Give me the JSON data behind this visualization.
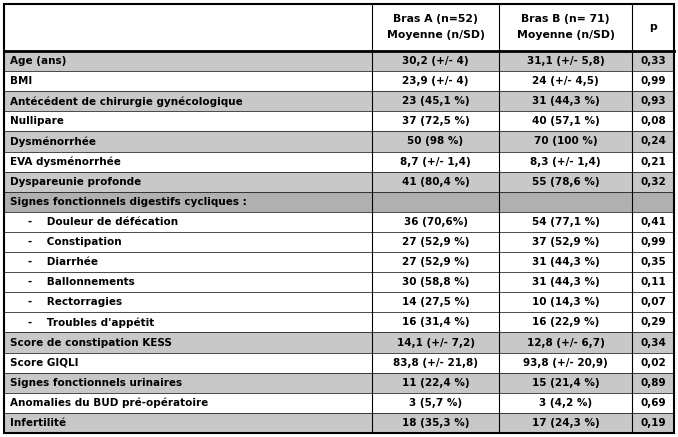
{
  "rows": [
    {
      "label": "Age (ans)",
      "bras_a": "30,2 (+/- 4)",
      "bras_b": "31,1 (+/- 5,8)",
      "p": "0,33",
      "bg": "light",
      "bold": true,
      "indent": 0
    },
    {
      "label": "BMI",
      "bras_a": "23,9 (+/- 4)",
      "bras_b": "24 (+/- 4,5)",
      "p": "0,99",
      "bg": "white",
      "bold": true,
      "indent": 0
    },
    {
      "label": "Antécédent de chirurgie gynécologique",
      "bras_a": "23 (45,1 %)",
      "bras_b": "31 (44,3 %)",
      "p": "0,93",
      "bg": "light",
      "bold": true,
      "indent": 0
    },
    {
      "label": "Nullipare",
      "bras_a": "37 (72,5 %)",
      "bras_b": "40 (57,1 %)",
      "p": "0,08",
      "bg": "white",
      "bold": true,
      "indent": 0
    },
    {
      "label": "Dysménorrhée",
      "bras_a": "50 (98 %)",
      "bras_b": "70 (100 %)",
      "p": "0,24",
      "bg": "light",
      "bold": true,
      "indent": 0
    },
    {
      "label": "EVA dysménorrhée",
      "bras_a": "8,7 (+/- 1,4)",
      "bras_b": "8,3 (+/- 1,4)",
      "p": "0,21",
      "bg": "white",
      "bold": true,
      "indent": 0
    },
    {
      "label": "Dyspareunie profonde",
      "bras_a": "41 (80,4 %)",
      "bras_b": "55 (78,6 %)",
      "p": "0,32",
      "bg": "light",
      "bold": true,
      "indent": 0
    },
    {
      "label": "Signes fonctionnels digestifs cycliques :",
      "bras_a": "",
      "bras_b": "",
      "p": "",
      "bg": "medium",
      "bold": true,
      "indent": 0
    },
    {
      "label": "-    Douleur de défécation",
      "bras_a": "36 (70,6%)",
      "bras_b": "54 (77,1 %)",
      "p": "0,41",
      "bg": "white",
      "bold": true,
      "indent": 1
    },
    {
      "label": "-    Constipation",
      "bras_a": "27 (52,9 %)",
      "bras_b": "37 (52,9 %)",
      "p": "0,99",
      "bg": "white",
      "bold": true,
      "indent": 1
    },
    {
      "label": "-    Diarrhée",
      "bras_a": "27 (52,9 %)",
      "bras_b": "31 (44,3 %)",
      "p": "0,35",
      "bg": "white",
      "bold": true,
      "indent": 1
    },
    {
      "label": "-    Ballonnements",
      "bras_a": "30 (58,8 %)",
      "bras_b": "31 (44,3 %)",
      "p": "0,11",
      "bg": "white",
      "bold": true,
      "indent": 1
    },
    {
      "label": "-    Rectorragies",
      "bras_a": "14 (27,5 %)",
      "bras_b": "10 (14,3 %)",
      "p": "0,07",
      "bg": "white",
      "bold": true,
      "indent": 1
    },
    {
      "label": "-    Troubles d'appétit",
      "bras_a": "16 (31,4 %)",
      "bras_b": "16 (22,9 %)",
      "p": "0,29",
      "bg": "white",
      "bold": true,
      "indent": 1
    },
    {
      "label": "Score de constipation KESS",
      "bras_a": "14,1 (+/- 7,2)",
      "bras_b": "12,8 (+/- 6,7)",
      "p": "0,34",
      "bg": "light",
      "bold": true,
      "indent": 0
    },
    {
      "label": "Score GIQLI",
      "bras_a": "83,8 (+/- 21,8)",
      "bras_b": "93,8 (+/- 20,9)",
      "p": "0,02",
      "bg": "white",
      "bold": true,
      "indent": 0
    },
    {
      "label": "Signes fonctionnels urinaires",
      "bras_a": "11 (22,4 %)",
      "bras_b": "15 (21,4 %)",
      "p": "0,89",
      "bg": "light",
      "bold": true,
      "indent": 0
    },
    {
      "label": "Anomalies du BUD pré-opératoire",
      "bras_a": "3 (5,7 %)",
      "bras_b": "3 (4,2 %)",
      "p": "0,69",
      "bg": "white",
      "bold": true,
      "indent": 0
    },
    {
      "label": "Infertilité",
      "bras_a": "18 (35,3 %)",
      "bras_b": "17 (24,3 %)",
      "p": "0,19",
      "bg": "light",
      "bold": true,
      "indent": 0
    }
  ],
  "bg_colors": {
    "light": "#c8c8c8",
    "white": "#ffffff",
    "medium": "#b0b0b0"
  },
  "col1_header_line1": "Bras A (n=52)",
  "col1_header_line2": "Moyenne (n/SD)",
  "col2_header_line1": "Bras B (n= 71)",
  "col2_header_line2": "Moyenne (n/SD)",
  "col3_header": "p",
  "border_color": "#000000",
  "fig_width": 6.78,
  "fig_height": 4.37,
  "dpi": 100
}
